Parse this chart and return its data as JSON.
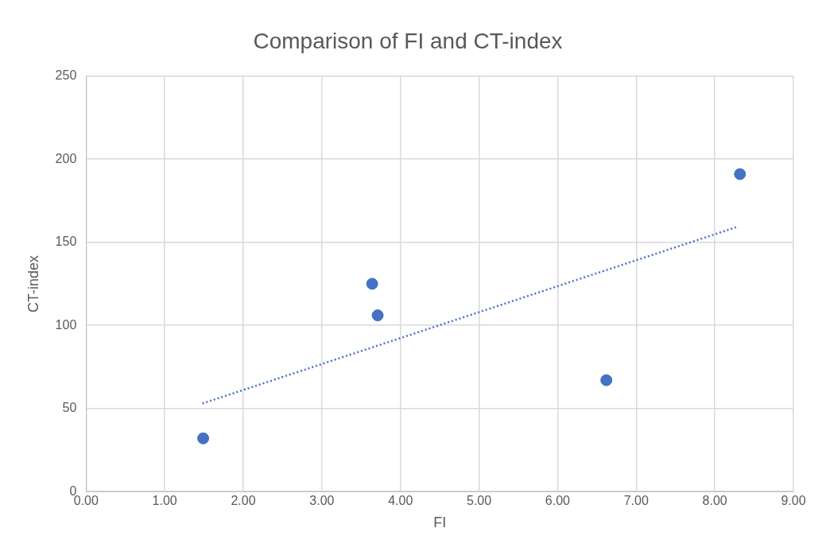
{
  "chart_data": {
    "type": "scatter",
    "title": "Comparison of FI and CT-index",
    "xlabel": "FI",
    "ylabel": "CT-index",
    "x": [
      1.49,
      3.64,
      3.71,
      6.62,
      8.32
    ],
    "values": [
      32,
      125,
      106,
      67,
      191
    ],
    "color": "#4472c4",
    "marker": "circle",
    "series": [
      {
        "type": "line",
        "x": [
          1.48,
          8.27
        ],
        "values": [
          53,
          159
        ],
        "color": "#4472c4",
        "line_style": "dotted",
        "marker": "none"
      }
    ],
    "xlim": [
      0,
      9
    ],
    "xticks": [
      {
        "value": 0,
        "label": "0.00"
      },
      {
        "value": 1,
        "label": "1.00"
      },
      {
        "value": 2,
        "label": "2.00"
      },
      {
        "value": 3,
        "label": "3.00"
      },
      {
        "value": 4,
        "label": "4.00"
      },
      {
        "value": 5,
        "label": "5.00"
      },
      {
        "value": 6,
        "label": "6.00"
      },
      {
        "value": 7,
        "label": "7.00"
      },
      {
        "value": 8,
        "label": "8.00"
      },
      {
        "value": 9,
        "label": "9.00"
      }
    ],
    "ylim": [
      0,
      250
    ],
    "yticks": [
      0,
      50,
      100,
      150,
      200,
      250
    ],
    "grid": true
  }
}
